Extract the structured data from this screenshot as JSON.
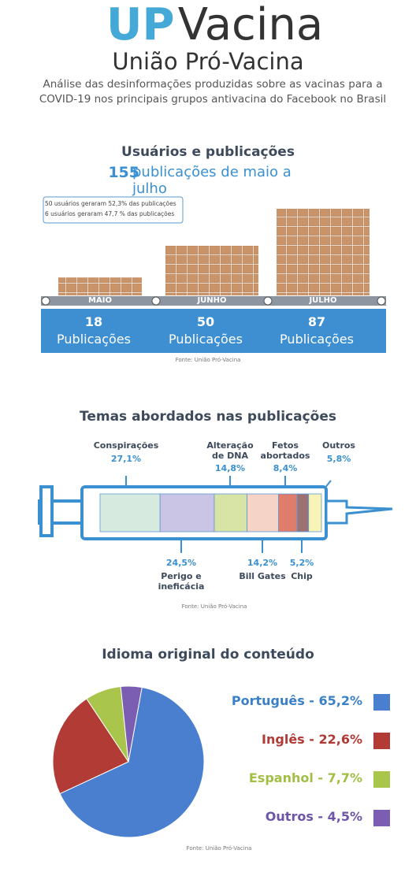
{
  "header": {
    "logo_up": "UP",
    "logo_vacina": "Vacina",
    "subtitle": "União Pró-Vacina",
    "description": "Análise das desinformações produzidas sobre as vacinas para a COVID-19 nos principais grupos antivacina do Facebook no Brasil"
  },
  "chart_data": [
    {
      "type": "bar",
      "title": "Usuários e publicações",
      "subtitle_value": 155,
      "subtitle": "publicações de maio a julho",
      "notes": [
        "50 usuários geraram 52,3% das publicações",
        "6 usuários geraram 47,7 % das publicações"
      ],
      "categories": [
        "MAIO",
        "JUNHO",
        "JULHO"
      ],
      "values": [
        18,
        50,
        87
      ],
      "value_unit": "Publicações",
      "color": "#c9946a",
      "source": "Fonte: União Pró-Vacina"
    },
    {
      "type": "stacked-bar",
      "title": "Temas abordados nas publicações",
      "categories": [
        "Conspirações",
        "Perigo e ineficácia",
        "Alteração de DNA",
        "Bill Gates",
        "Fetos abortados",
        "Chip",
        "Outros"
      ],
      "values": [
        27.1,
        24.5,
        14.8,
        14.2,
        8.4,
        5.2,
        5.8
      ],
      "value_labels": [
        "27,1%",
        "24,5%",
        "14,8%",
        "14,2%",
        "8,4%",
        "5,2%",
        "5,8%"
      ],
      "colors": [
        "#d7eadf",
        "#cac5e4",
        "#d8e4a6",
        "#f5d3c6",
        "#e07c6c",
        "#9b7272",
        "#f8f3b6"
      ],
      "source": "Fonte: União Pró-Vacina"
    },
    {
      "type": "pie",
      "title": "Idioma original do conteúdo",
      "categories": [
        "Português - 65,2%",
        "Inglês - 22,6%",
        "Espanhol - 7,7%",
        "Outros - 4,5%"
      ],
      "values": [
        65.2,
        22.6,
        7.7,
        4.5
      ],
      "colors": [
        "#4a7fcf",
        "#b23b36",
        "#a9c54b",
        "#7b5db1"
      ],
      "text_colors": [
        "#3a80c8",
        "#b03a35",
        "#a2bf45",
        "#6e55a8"
      ],
      "source": "Fonte: União Pró-Vacina"
    }
  ]
}
